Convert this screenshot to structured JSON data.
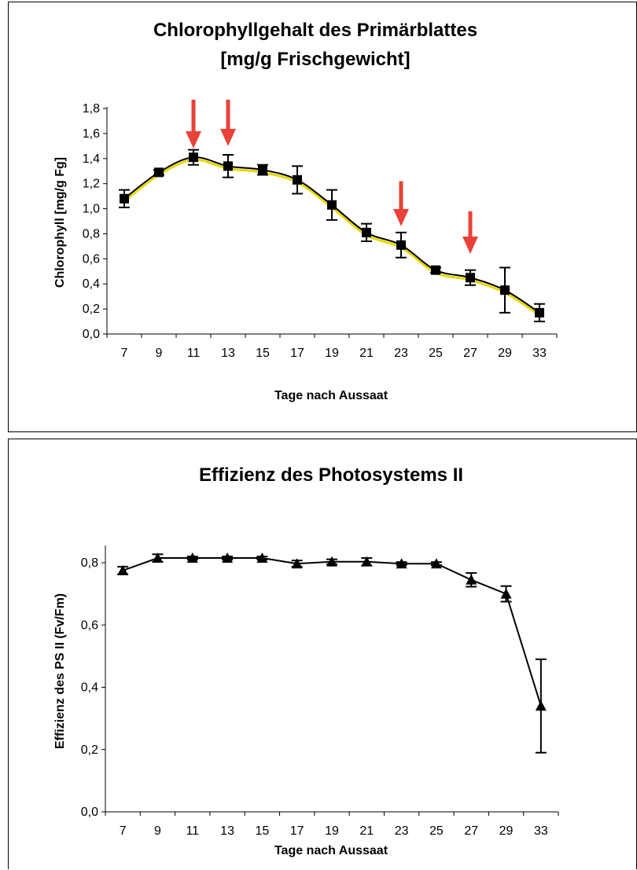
{
  "chart_data": [
    {
      "type": "line",
      "title": "Chlorophyllgehalt des Primärblattes",
      "subtitle": "[mg/g Frischgewicht]",
      "xlabel": "Tage nach Aussaat",
      "ylabel": "Chlorophyll [mg/g Fg]",
      "categories": [
        "7",
        "9",
        "11",
        "13",
        "15",
        "17",
        "19",
        "21",
        "23",
        "25",
        "27",
        "29",
        "33"
      ],
      "ylim": [
        0,
        1.8
      ],
      "yticks": [
        "0,0",
        "0,2",
        "0,4",
        "0,6",
        "0,8",
        "1,0",
        "1,2",
        "1,4",
        "1,6",
        "1,8"
      ],
      "grid": false,
      "series": [
        {
          "marker": "square",
          "color": "#000000",
          "values": [
            1.08,
            1.29,
            1.41,
            1.34,
            1.31,
            1.23,
            1.03,
            0.81,
            0.71,
            0.51,
            0.45,
            0.35,
            0.17
          ],
          "error": [
            0.07,
            0.02,
            0.06,
            0.09,
            0.04,
            0.11,
            0.12,
            0.07,
            0.1,
            0.02,
            0.06,
            0.18,
            0.07
          ]
        },
        {
          "marker": "none",
          "color": "#e8d800",
          "values": [
            1.06,
            1.27,
            1.39,
            1.32,
            1.29,
            1.21,
            1.01,
            0.79,
            0.69,
            0.49,
            0.43,
            0.33,
            0.15
          ]
        }
      ],
      "annotations": {
        "type": "arrow",
        "color": "#e8423a",
        "at": [
          "11",
          "13",
          "23",
          "27"
        ],
        "tip": [
          1.48,
          1.5,
          0.86,
          0.64
        ],
        "tail": [
          1.87,
          1.87,
          1.22,
          0.98
        ]
      }
    },
    {
      "type": "line",
      "title": "Effizienz des Photosystems II",
      "xlabel": "Tage nach Aussaat",
      "ylabel": "Effizienz des PS II (Fv/Fm)",
      "categories": [
        "7",
        "9",
        "11",
        "13",
        "15",
        "17",
        "19",
        "21",
        "23",
        "25",
        "27",
        "29",
        "33"
      ],
      "ylim": [
        0,
        0.85
      ],
      "yticks": [
        "0,0",
        "0,2",
        "0,4",
        "0,6",
        "0,8"
      ],
      "grid": false,
      "series": [
        {
          "marker": "triangle",
          "color": "#000000",
          "values": [
            0.775,
            0.815,
            0.815,
            0.815,
            0.815,
            0.797,
            0.803,
            0.803,
            0.797,
            0.797,
            0.745,
            0.7,
            0.34
          ],
          "error": [
            0.012,
            0.012,
            0.005,
            0.005,
            0.005,
            0.01,
            0.008,
            0.012,
            0.005,
            0.005,
            0.022,
            0.025,
            0.15
          ]
        }
      ]
    }
  ]
}
